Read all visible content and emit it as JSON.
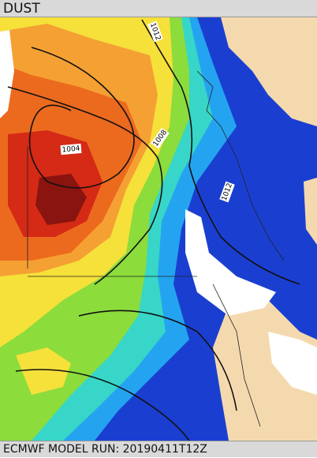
{
  "header": {
    "title": "DUST"
  },
  "map": {
    "isobar_labels": [
      "1012",
      "1008",
      "1004",
      "1012"
    ]
  },
  "footer": {
    "text": "ECMWF MODEL RUN: 20190411T12Z"
  }
}
